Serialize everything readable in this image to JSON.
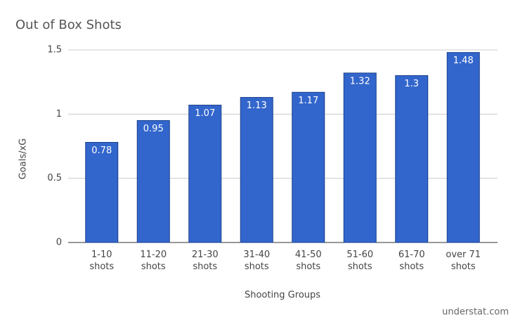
{
  "chart_data": {
    "type": "bar",
    "title": "Out of Box Shots",
    "categories": [
      "1-10 shots",
      "11-20 shots",
      "21-30 shots",
      "31-40 shots",
      "41-50 shots",
      "51-60 shots",
      "61-70 shots",
      "over 71 shots"
    ],
    "values": [
      0.78,
      0.95,
      1.07,
      1.13,
      1.17,
      1.32,
      1.3,
      1.48
    ],
    "color": "#3366cc",
    "x_label": "Shooting Groups",
    "y_label": "Goals/xG",
    "ylim": [
      0,
      1.5
    ],
    "yticks": [
      0,
      0.5,
      1,
      1.5
    ],
    "grid": true,
    "annotation": "understat.com"
  }
}
